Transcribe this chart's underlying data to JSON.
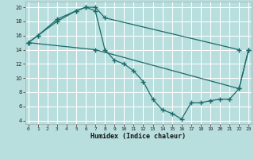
{
  "xlabel": "Humidex (Indice chaleur)",
  "bg_color": "#b8dede",
  "grid_color": "#d0eeee",
  "line_color": "#1a6b6b",
  "series1_x": [
    0,
    1,
    3,
    5,
    6,
    7,
    8,
    22
  ],
  "series1_y": [
    15,
    16,
    18.3,
    19.5,
    20,
    20,
    18.5,
    14
  ],
  "series2_x": [
    0,
    1,
    3,
    5,
    6,
    7,
    8,
    9,
    10,
    11,
    12,
    13,
    14,
    15,
    16,
    17,
    18,
    19,
    20,
    21,
    22,
    23
  ],
  "series2_y": [
    15,
    16,
    18,
    19.5,
    20,
    19.5,
    14,
    12.5,
    12,
    11,
    9.5,
    7,
    5.5,
    5,
    4.2,
    6.5,
    6.5,
    6.8,
    7,
    7,
    8.5,
    14
  ],
  "series3_x": [
    0,
    7,
    22,
    23
  ],
  "series3_y": [
    15,
    14,
    8.5,
    14
  ],
  "xlim": [
    -0.3,
    23.3
  ],
  "ylim": [
    3.5,
    20.8
  ],
  "yticks": [
    4,
    6,
    8,
    10,
    12,
    14,
    16,
    18,
    20
  ],
  "xticks": [
    0,
    1,
    2,
    3,
    4,
    5,
    6,
    7,
    8,
    9,
    10,
    11,
    12,
    13,
    14,
    15,
    16,
    17,
    18,
    19,
    20,
    21,
    22,
    23
  ]
}
